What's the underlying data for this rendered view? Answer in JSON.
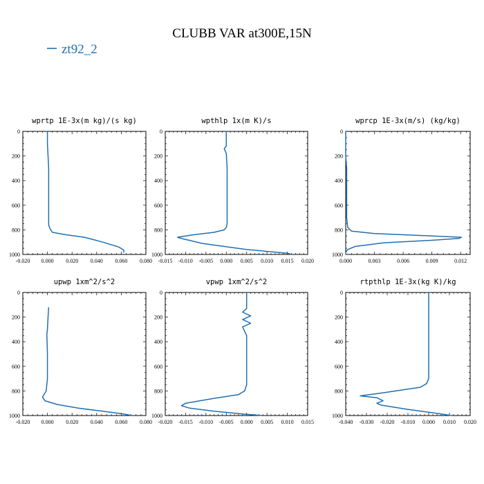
{
  "figure": {
    "title": "CLUBB VAR at300E,15N",
    "legend_label": "zt92_2",
    "legend_color": "#1f6fb0"
  },
  "chart_data": [
    {
      "type": "line",
      "title": "wprtp  1E-3x(m kg)/(s kg)",
      "xlim": [
        -0.02,
        0.08
      ],
      "xticks": [
        -0.02,
        0,
        0.02,
        0.04,
        0.06,
        0.08
      ],
      "xtick_labels": [
        "-0.020",
        "0.000",
        "0.020",
        "0.040",
        "0.060",
        "0.080"
      ],
      "ylim": [
        0,
        1000
      ],
      "y_inverted": true,
      "yticks": [
        0,
        200,
        400,
        600,
        800,
        1000
      ],
      "ytick_labels": [
        "0",
        "200",
        "400",
        "600",
        "800",
        "1000"
      ],
      "series": [
        {
          "name": "zt92_2",
          "x": [
            0.0,
            0.0,
            0.001,
            0.001,
            0.001,
            0.001,
            0.002,
            0.004,
            0.015,
            0.03,
            0.045,
            0.058,
            0.062,
            0.062
          ],
          "y": [
            0,
            100,
            300,
            500,
            650,
            760,
            790,
            820,
            840,
            860,
            900,
            940,
            965,
            985
          ]
        }
      ]
    },
    {
      "type": "line",
      "title": "wpthlp  1x(m K)/s",
      "xlim": [
        -0.015,
        0.02
      ],
      "xticks": [
        -0.015,
        -0.01,
        -0.005,
        0,
        0.005,
        0.01,
        0.015,
        0.02
      ],
      "xtick_labels": [
        "-0.015",
        "-0.010",
        "-0.005",
        "0.000",
        "0.005",
        "0.010",
        "0.015",
        "0.020"
      ],
      "ylim": [
        0,
        1000
      ],
      "y_inverted": true,
      "yticks": [
        0,
        200,
        400,
        600,
        800,
        1000
      ],
      "ytick_labels": [
        "0",
        "200",
        "400",
        "600",
        "800",
        "1000"
      ],
      "series": [
        {
          "name": "zt92_2",
          "x": [
            0.0,
            0.0,
            -0.0005,
            0.0,
            0.0002,
            0.0002,
            0.0002,
            0.0002,
            0.0,
            -0.0005,
            -0.003,
            -0.008,
            -0.012,
            -0.011,
            -0.006,
            0.005,
            0.015,
            0.016
          ],
          "y": [
            0,
            120,
            140,
            180,
            300,
            500,
            650,
            750,
            780,
            800,
            820,
            840,
            860,
            870,
            910,
            960,
            990,
            1000
          ]
        }
      ]
    },
    {
      "type": "line",
      "title": "wprcp  1E-3x(m/s) (kg/kg)",
      "xlim": [
        0,
        0.013
      ],
      "xticks": [
        0,
        0.003,
        0.006,
        0.009,
        0.012
      ],
      "xtick_labels": [
        "0.000",
        "0.003",
        "0.006",
        "0.009",
        "0.012"
      ],
      "ylim": [
        0,
        1000
      ],
      "y_inverted": true,
      "yticks": [
        0,
        200,
        400,
        600,
        800,
        1000
      ],
      "ytick_labels": [
        "0",
        "200",
        "400",
        "600",
        "800",
        "1000"
      ],
      "series": [
        {
          "name": "zt92_2",
          "x": [
            0,
            0,
            0.0001,
            0.0001,
            0.0001,
            0.0002,
            0.0006,
            0.003,
            0.009,
            0.0121,
            0.0118,
            0.009,
            0.004,
            0.001,
            0.0002,
            0,
            0
          ],
          "y": [
            0,
            200,
            300,
            500,
            700,
            780,
            810,
            830,
            850,
            860,
            870,
            885,
            905,
            935,
            960,
            985,
            1000
          ]
        }
      ]
    },
    {
      "type": "line",
      "title": "upwp  1xm^2/s^2",
      "xlim": [
        -0.02,
        0.08
      ],
      "xticks": [
        -0.02,
        0,
        0.02,
        0.04,
        0.06,
        0.08
      ],
      "xtick_labels": [
        "-0.020",
        "0.000",
        "0.020",
        "0.040",
        "0.060",
        "0.080"
      ],
      "ylim": [
        0,
        1000
      ],
      "y_inverted": true,
      "yticks": [
        0,
        200,
        400,
        600,
        800,
        1000
      ],
      "ytick_labels": [
        "0",
        "200",
        "400",
        "600",
        "800",
        "1000"
      ],
      "series": [
        {
          "name": "zt92_2",
          "x": [
            0.001,
            0.0005,
            0.0,
            -0.0005,
            -0.0003,
            0.0,
            0.0,
            0.0,
            -0.001,
            -0.004,
            -0.002,
            0.008,
            0.025,
            0.045,
            0.06,
            0.069
          ],
          "y": [
            120,
            200,
            300,
            340,
            400,
            500,
            600,
            700,
            800,
            850,
            880,
            910,
            940,
            965,
            985,
            1000
          ]
        }
      ]
    },
    {
      "type": "line",
      "title": "vpwp  1xm^2/s^2",
      "xlim": [
        -0.02,
        0.015
      ],
      "xticks": [
        -0.02,
        -0.015,
        -0.01,
        -0.005,
        0,
        0.005,
        0.01,
        0.015
      ],
      "xtick_labels": [
        "-0.020",
        "-0.015",
        "-0.010",
        "-0.005",
        "0.000",
        "0.005",
        "0.010",
        "0.015"
      ],
      "ylim": [
        0,
        1000
      ],
      "y_inverted": true,
      "yticks": [
        0,
        200,
        400,
        600,
        800,
        1000
      ],
      "ytick_labels": [
        "0",
        "200",
        "400",
        "600",
        "800",
        "1000"
      ],
      "series": [
        {
          "name": "zt92_2",
          "x": [
            0.0,
            0.0,
            -0.001,
            0.001,
            -0.001,
            0.001,
            -0.001,
            0.0,
            0.0,
            0.0,
            0.0,
            -0.0005,
            -0.002,
            -0.008,
            -0.015,
            -0.016,
            -0.014,
            -0.008,
            0.0,
            0.004
          ],
          "y": [
            0,
            130,
            160,
            190,
            220,
            250,
            280,
            350,
            500,
            650,
            750,
            800,
            830,
            860,
            900,
            920,
            940,
            965,
            990,
            1000
          ]
        }
      ]
    },
    {
      "type": "line",
      "title": "rtpthlp  1E-3x(kg K)/kg",
      "xlim": [
        -0.04,
        0.02
      ],
      "xticks": [
        -0.04,
        -0.03,
        -0.02,
        -0.01,
        0,
        0.01,
        0.02
      ],
      "xtick_labels": [
        "-0.040",
        "-0.030",
        "-0.020",
        "-0.010",
        "0.000",
        "0.010",
        "0.020"
      ],
      "ylim": [
        0,
        1000
      ],
      "y_inverted": true,
      "yticks": [
        0,
        200,
        400,
        600,
        800,
        1000
      ],
      "ytick_labels": [
        "0",
        "200",
        "400",
        "600",
        "800",
        "1000"
      ],
      "series": [
        {
          "name": "zt92_2",
          "x": [
            0.0,
            0.0,
            0.0,
            0.0,
            0.0,
            -0.001,
            -0.004,
            -0.012,
            -0.022,
            -0.033,
            -0.025,
            -0.022,
            -0.025,
            -0.023,
            -0.01,
            0.005,
            0.011
          ],
          "y": [
            0,
            200,
            400,
            600,
            700,
            740,
            770,
            790,
            815,
            840,
            855,
            880,
            900,
            915,
            950,
            985,
            1000
          ]
        }
      ]
    }
  ]
}
